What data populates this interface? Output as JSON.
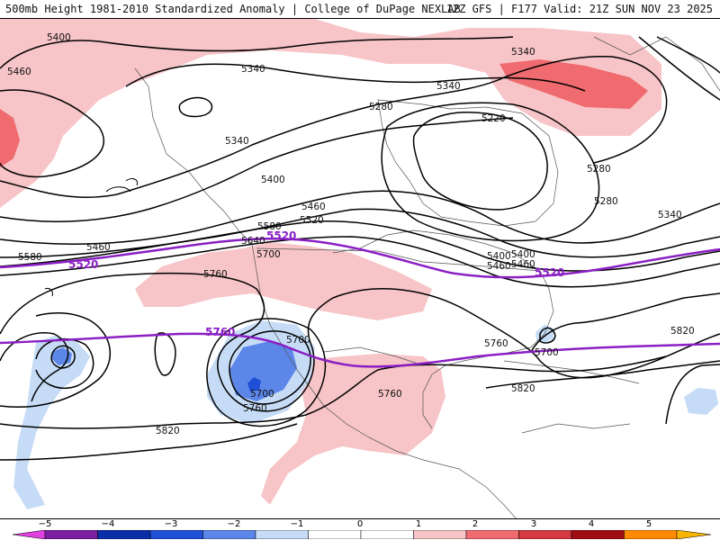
{
  "header": {
    "title_left": "500mb Height 1981-2010 Standardized Anomaly | College of DuPage NEXLAB",
    "title_right": "12Z GFS | F177 Valid: 21Z SUN NOV 23 2025"
  },
  "colors": {
    "purple_contour": "#8a1fc4",
    "black_contour": "#000000",
    "neg_light": "#c6dcf6",
    "neg_mid": "#5c86e8",
    "neg_deep": "#1f4fd6",
    "pos_light": "#f7c4c7",
    "pos_mid": "#ef6b6f",
    "pos_deep": "#c4121a"
  },
  "map": {
    "height_labels": [
      "5400",
      "5460",
      "5340",
      "5340",
      "5340",
      "5340",
      "5220",
      "5280",
      "5280",
      "5280",
      "5400",
      "5460",
      "5520",
      "5580",
      "5640",
      "5700",
      "5760",
      "5820",
      "5580",
      "5460",
      "5340",
      "5400",
      "5460",
      "5700",
      "5760",
      "5820",
      "5700",
      "5760",
      "5820",
      "5460",
      "5400",
      "5760",
      "5700"
    ],
    "purple_labels": [
      "5520",
      "5520",
      "5520",
      "5760"
    ]
  },
  "colorbar": {
    "ticks": [
      "−5",
      "−4",
      "−3",
      "−2",
      "−1",
      "0",
      "1",
      "2",
      "3",
      "4",
      "5"
    ],
    "segments": [
      "#e040e0",
      "#7a1fa0",
      "#0b2ea8",
      "#1f4fd6",
      "#5c86e8",
      "#c6dcf6",
      "#ffffff",
      "#ffffff",
      "#f7c4c7",
      "#ef6b6f",
      "#d43a3f",
      "#a10d14",
      "#ff8a00",
      "#f7b500"
    ]
  }
}
